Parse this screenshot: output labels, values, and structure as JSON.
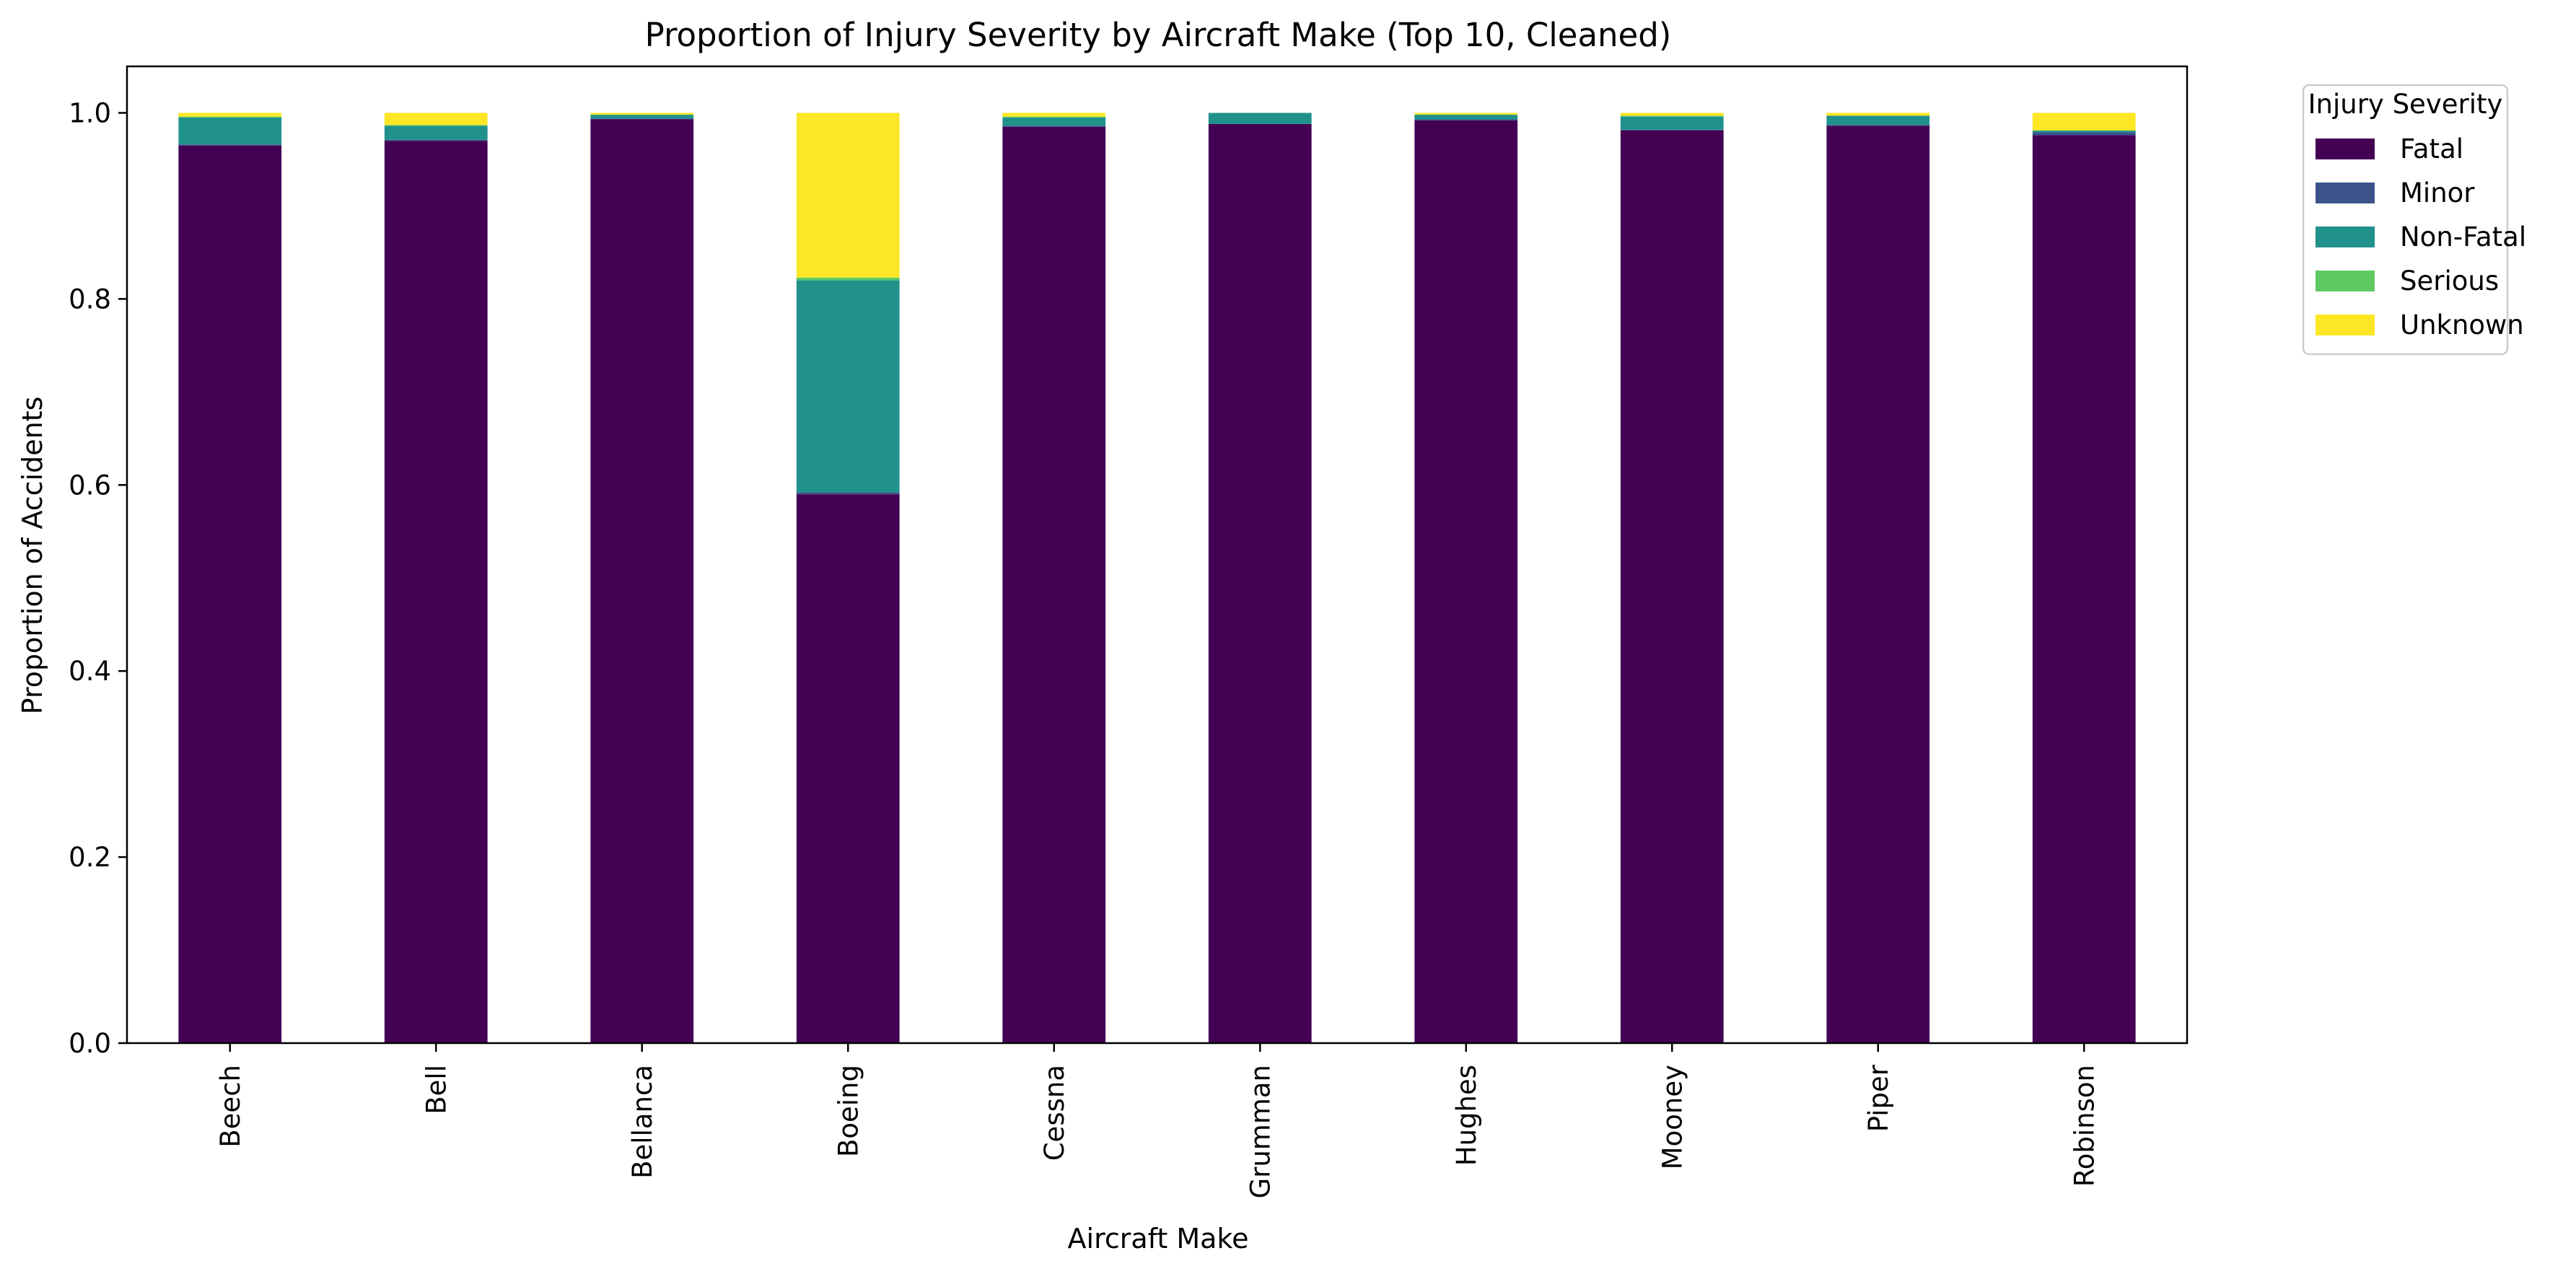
{
  "chart_data": {
    "type": "bar",
    "stacked": true,
    "title": "Proportion of Injury Severity by Aircraft Make (Top 10, Cleaned)",
    "xlabel": "Aircraft Make",
    "ylabel": "Proportion of Accidents",
    "ylim": [
      0,
      1.05
    ],
    "yticks": [
      "0.0",
      "0.2",
      "0.4",
      "0.6",
      "0.8",
      "1.0"
    ],
    "ytick_values": [
      0,
      0.2,
      0.4,
      0.6,
      0.8,
      1.0
    ],
    "grid": false,
    "categories": [
      "Beech",
      "Bell",
      "Bellanca",
      "Boeing",
      "Cessna",
      "Grumman",
      "Hughes",
      "Mooney",
      "Piper",
      "Robinson"
    ],
    "legend": {
      "title": "Injury Severity",
      "placement": "outside-top-right"
    },
    "series": [
      {
        "name": "Fatal",
        "color": "#440154",
        "values": [
          0.965,
          0.97,
          0.993,
          0.59,
          0.985,
          0.988,
          0.992,
          0.981,
          0.986,
          0.976
        ]
      },
      {
        "name": "Minor",
        "color": "#3b528b",
        "values": [
          0.001,
          0.001,
          0.001,
          0.002,
          0.001,
          0.0,
          0.001,
          0.001,
          0.001,
          0.003
        ]
      },
      {
        "name": "Non-Fatal",
        "color": "#21918c",
        "values": [
          0.029,
          0.015,
          0.004,
          0.228,
          0.009,
          0.012,
          0.005,
          0.014,
          0.01,
          0.002
        ]
      },
      {
        "name": "Serious",
        "color": "#5ec962",
        "values": [
          0.001,
          0.001,
          0.0,
          0.003,
          0.001,
          0.0,
          0.0,
          0.001,
          0.0,
          0.0
        ]
      },
      {
        "name": "Unknown",
        "color": "#fde725",
        "values": [
          0.004,
          0.013,
          0.002,
          0.177,
          0.004,
          0.0,
          0.002,
          0.003,
          0.003,
          0.019
        ]
      }
    ]
  }
}
